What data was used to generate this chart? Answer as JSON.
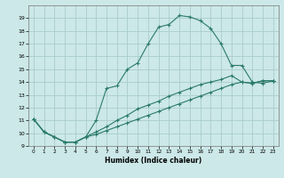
{
  "xlabel": "Humidex (Indice chaleur)",
  "bg_color": "#cce8e8",
  "grid_color": "#aacccc",
  "line_color": "#2a7a6a",
  "xlim": [
    -0.5,
    23.5
  ],
  "ylim": [
    9,
    20
  ],
  "yticks": [
    9,
    10,
    11,
    12,
    13,
    14,
    15,
    16,
    17,
    18,
    19
  ],
  "xticks": [
    0,
    1,
    2,
    3,
    4,
    5,
    6,
    7,
    8,
    9,
    10,
    11,
    12,
    13,
    14,
    15,
    16,
    17,
    18,
    19,
    20,
    21,
    22,
    23
  ],
  "series": [
    {
      "x": [
        0,
        1,
        2,
        3,
        4,
        5,
        6,
        7,
        8,
        9,
        10,
        11,
        12,
        13,
        14,
        15,
        16,
        17,
        18,
        19,
        20,
        21,
        22,
        23
      ],
      "y": [
        11.1,
        10.1,
        9.7,
        9.3,
        9.3,
        9.7,
        11.0,
        13.5,
        13.7,
        15.0,
        15.5,
        17.0,
        18.3,
        18.5,
        19.2,
        19.1,
        18.8,
        18.2,
        17.0,
        15.3,
        15.3,
        14.0,
        13.9,
        14.1
      ]
    },
    {
      "x": [
        0,
        1,
        2,
        3,
        4,
        5,
        6,
        7,
        8,
        9,
        10,
        11,
        12,
        13,
        14,
        15,
        16,
        17,
        18,
        19,
        20,
        21,
        22,
        23
      ],
      "y": [
        11.1,
        10.1,
        9.7,
        9.3,
        9.3,
        9.7,
        10.1,
        10.5,
        11.0,
        11.4,
        11.9,
        12.2,
        12.5,
        12.9,
        13.2,
        13.5,
        13.8,
        14.0,
        14.2,
        14.5,
        14.0,
        13.9,
        14.1,
        14.1
      ]
    },
    {
      "x": [
        0,
        1,
        2,
        3,
        4,
        5,
        6,
        7,
        8,
        9,
        10,
        11,
        12,
        13,
        14,
        15,
        16,
        17,
        18,
        19,
        20,
        21,
        22,
        23
      ],
      "y": [
        11.1,
        10.1,
        9.7,
        9.3,
        9.3,
        9.7,
        9.9,
        10.2,
        10.5,
        10.8,
        11.1,
        11.4,
        11.7,
        12.0,
        12.3,
        12.6,
        12.9,
        13.2,
        13.5,
        13.8,
        14.0,
        13.9,
        14.1,
        14.1
      ]
    }
  ]
}
